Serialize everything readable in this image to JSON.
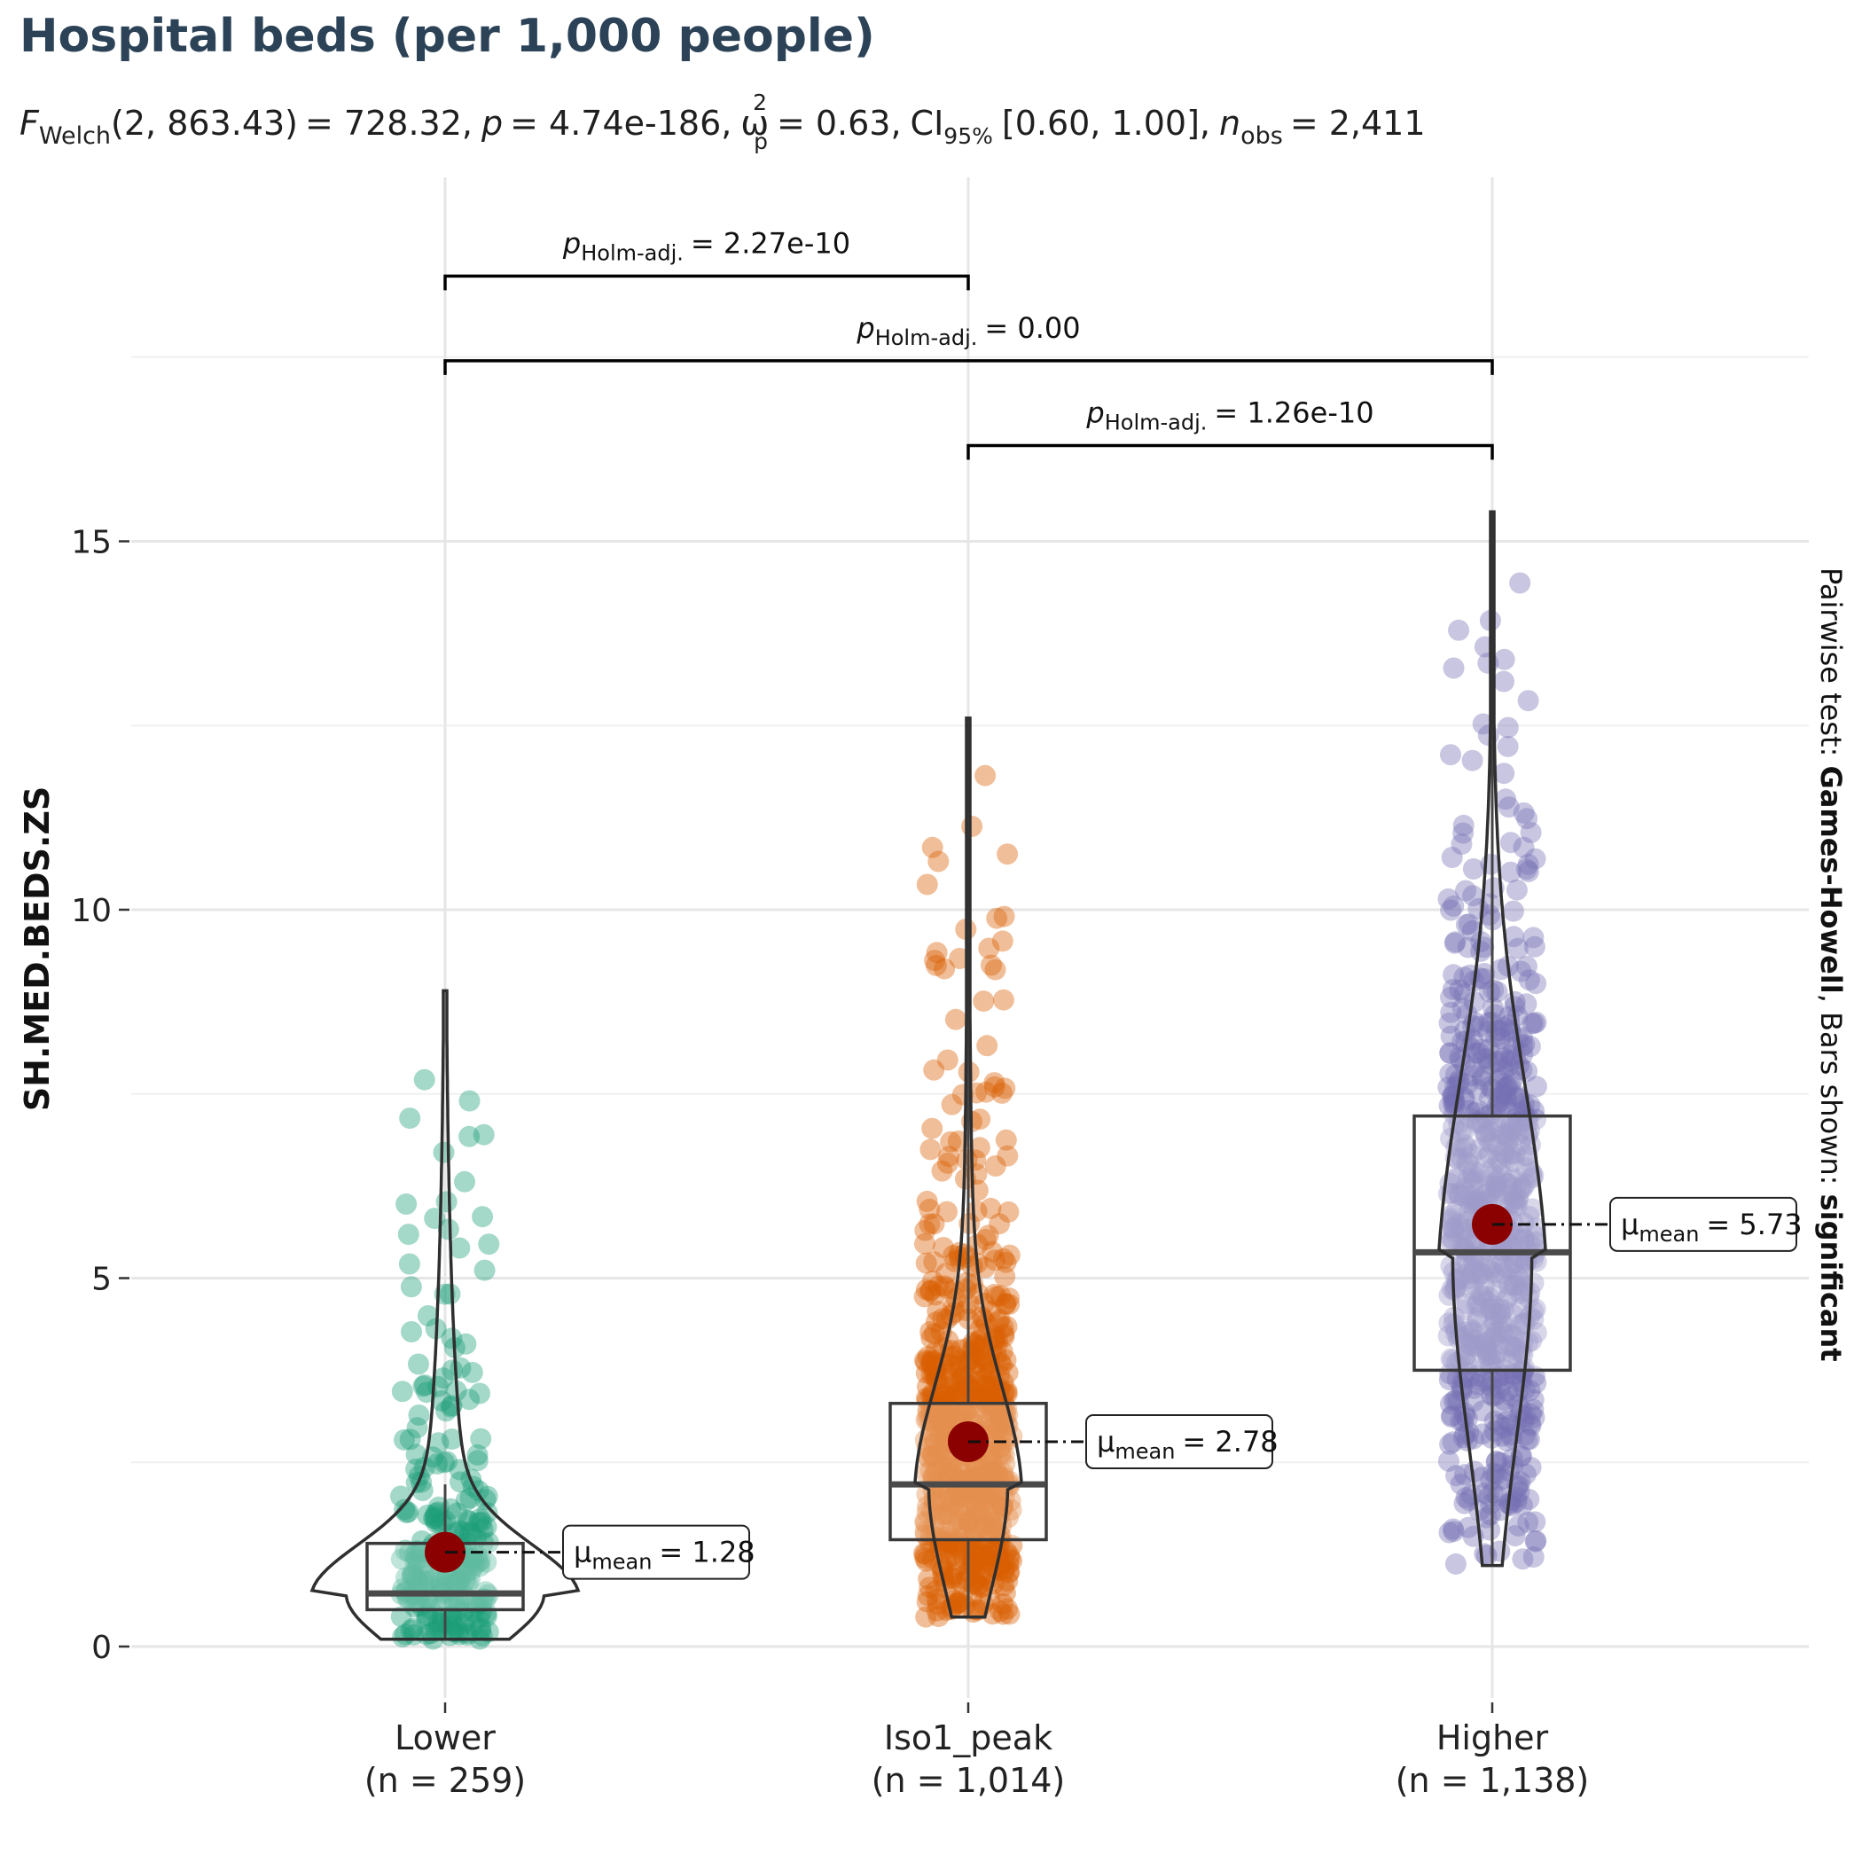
{
  "chart_data": {
    "type": "violin-box-scatter",
    "title": "Hospital beds (per 1,000 people)",
    "subtitle": {
      "f_symbol": "F",
      "f_sub": "Welch",
      "df": "(2, 863.43)",
      "stat": "= 728.32,",
      "p_symbol": "p",
      "p_value": "= 4.74e-186,",
      "effect_symbol": "ω",
      "effect_sup": "2",
      "effect_sub": "p",
      "effect_value": "= 0.63,",
      "ci_label": "CI",
      "ci_sub": "95%",
      "ci_value": "[0.60, 1.00],",
      "n_symbol": "n",
      "n_sub": "obs",
      "n_value": "= 2,411"
    },
    "ylabel": "SH.MED.BEDS.ZS",
    "ylim": [
      -0.9,
      19.6
    ],
    "yticks": [
      0,
      5,
      10,
      15
    ],
    "caption": {
      "prefix": "Pairwise test: ",
      "test": "Games-Howell",
      "middle": ", Bars shown: ",
      "shown": "significant"
    },
    "groups": [
      {
        "name": "Lower",
        "n_label": "(n = 259)",
        "color": "#1b9e77",
        "min": 0.1,
        "q1": 0.5,
        "median": 0.72,
        "q3": 1.4,
        "max": 8.9,
        "whisker_high": 2.2,
        "mean": 1.28,
        "mean_label": "= 1.28"
      },
      {
        "name": "Iso1_peak",
        "n_label": "(n = 1,014)",
        "color": "#d95f02",
        "min": 0.4,
        "q1": 1.45,
        "median": 2.2,
        "q3": 3.3,
        "max": 12.6,
        "whisker_high": 12.6,
        "mean": 2.78,
        "mean_label": "= 2.78"
      },
      {
        "name": "Higher",
        "n_label": "(n = 1,138)",
        "color": "#7570b3",
        "min": 1.1,
        "q1": 3.75,
        "median": 5.35,
        "q3": 7.2,
        "max": 15.4,
        "whisker_high": 15.4,
        "mean": 5.73,
        "mean_label": "= 5.73"
      }
    ],
    "mean_label_symbol": "μ",
    "mean_label_sub": "mean",
    "pairwise": [
      {
        "from": 0,
        "to": 1,
        "y": 18.6,
        "p_symbol": "p",
        "p_sub": "Holm-adj.",
        "label": "= 2.27e-10"
      },
      {
        "from": 0,
        "to": 2,
        "y": 17.45,
        "p_symbol": "p",
        "p_sub": "Holm-adj.",
        "label": "= 0.00"
      },
      {
        "from": 1,
        "to": 2,
        "y": 16.3,
        "p_symbol": "p",
        "p_sub": "Holm-adj.",
        "label": "= 1.26e-10"
      }
    ],
    "mean_point_color": "#8b0000",
    "grid": true,
    "legend": "none"
  }
}
